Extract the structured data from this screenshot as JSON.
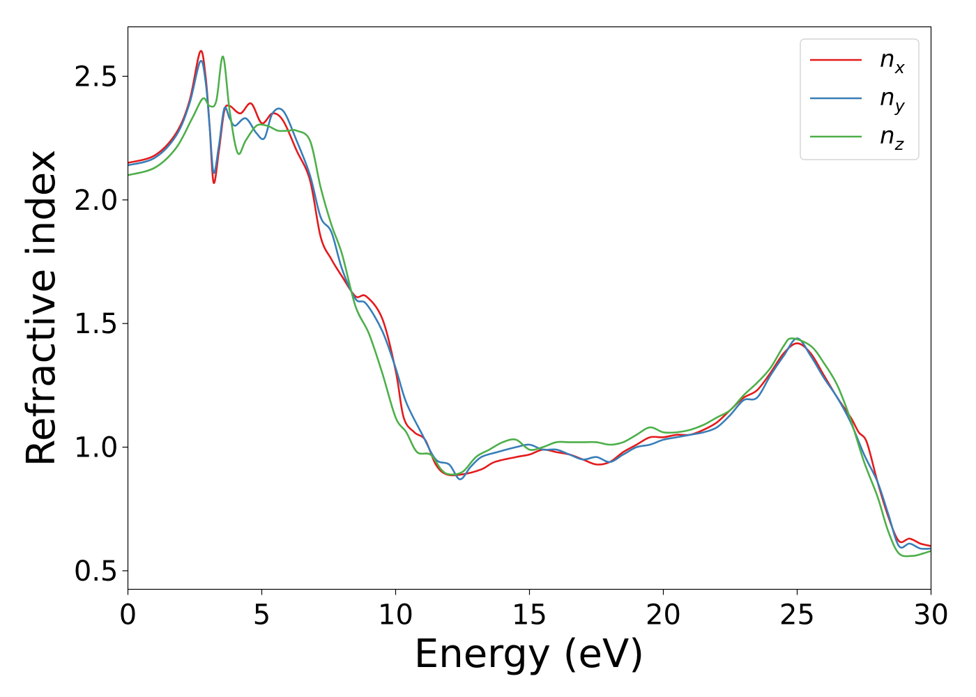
{
  "chart_data": {
    "type": "line",
    "title": "",
    "xlabel": "Energy (eV)",
    "ylabel": "Refractive index",
    "xlim": [
      0,
      30
    ],
    "ylim": [
      0.425,
      2.7
    ],
    "x_ticks": [
      0,
      5,
      10,
      15,
      20,
      25,
      30
    ],
    "y_ticks": [
      0.5,
      1.0,
      1.5,
      2.0,
      2.5
    ],
    "x_tick_labels": [
      "0",
      "5",
      "10",
      "15",
      "20",
      "25",
      "30"
    ],
    "y_tick_labels": [
      "0.5",
      "1.0",
      "1.5",
      "2.0",
      "2.5"
    ],
    "grid": false,
    "legend_position": "top-right",
    "series": [
      {
        "name": "n_x",
        "legend_base": "n",
        "legend_sub": "x",
        "color": "#e41a1c",
        "points": [
          [
            0,
            2.15
          ],
          [
            1,
            2.18
          ],
          [
            1.8,
            2.27
          ],
          [
            2.3,
            2.4
          ],
          [
            2.7,
            2.6
          ],
          [
            2.9,
            2.5
          ],
          [
            3.05,
            2.3
          ],
          [
            3.2,
            2.07
          ],
          [
            3.4,
            2.2
          ],
          [
            3.6,
            2.36
          ],
          [
            3.8,
            2.38
          ],
          [
            4.2,
            2.35
          ],
          [
            4.6,
            2.39
          ],
          [
            5.0,
            2.31
          ],
          [
            5.4,
            2.35
          ],
          [
            5.8,
            2.32
          ],
          [
            6.3,
            2.2
          ],
          [
            6.8,
            2.08
          ],
          [
            7.2,
            1.85
          ],
          [
            7.6,
            1.76
          ],
          [
            8.0,
            1.69
          ],
          [
            8.5,
            1.61
          ],
          [
            8.9,
            1.61
          ],
          [
            9.5,
            1.52
          ],
          [
            10.0,
            1.31
          ],
          [
            10.3,
            1.12
          ],
          [
            10.7,
            1.06
          ],
          [
            11.1,
            1.03
          ],
          [
            11.5,
            0.93
          ],
          [
            11.9,
            0.89
          ],
          [
            12.5,
            0.89
          ],
          [
            13.2,
            0.91
          ],
          [
            13.7,
            0.94
          ],
          [
            14.5,
            0.96
          ],
          [
            15.0,
            0.97
          ],
          [
            15.5,
            0.99
          ],
          [
            16.0,
            0.98
          ],
          [
            16.5,
            0.97
          ],
          [
            17.0,
            0.95
          ],
          [
            17.5,
            0.93
          ],
          [
            18.0,
            0.94
          ],
          [
            18.5,
            0.98
          ],
          [
            19.0,
            1.01
          ],
          [
            19.5,
            1.04
          ],
          [
            20.0,
            1.04
          ],
          [
            20.5,
            1.05
          ],
          [
            21.0,
            1.05
          ],
          [
            21.5,
            1.07
          ],
          [
            22.0,
            1.1
          ],
          [
            22.5,
            1.15
          ],
          [
            23.0,
            1.2
          ],
          [
            23.5,
            1.23
          ],
          [
            24.0,
            1.3
          ],
          [
            24.5,
            1.38
          ],
          [
            25.0,
            1.42
          ],
          [
            25.5,
            1.38
          ],
          [
            26.0,
            1.29
          ],
          [
            26.5,
            1.2
          ],
          [
            27.0,
            1.12
          ],
          [
            27.3,
            1.06
          ],
          [
            27.6,
            1.02
          ],
          [
            28.0,
            0.86
          ],
          [
            28.4,
            0.72
          ],
          [
            28.8,
            0.62
          ],
          [
            29.2,
            0.63
          ],
          [
            29.6,
            0.61
          ],
          [
            30.0,
            0.6
          ]
        ]
      },
      {
        "name": "n_y",
        "legend_base": "n",
        "legend_sub": "y",
        "color": "#377eb8",
        "points": [
          [
            0,
            2.14
          ],
          [
            1,
            2.17
          ],
          [
            1.8,
            2.26
          ],
          [
            2.3,
            2.39
          ],
          [
            2.7,
            2.56
          ],
          [
            2.9,
            2.48
          ],
          [
            3.05,
            2.3
          ],
          [
            3.2,
            2.11
          ],
          [
            3.4,
            2.22
          ],
          [
            3.6,
            2.37
          ],
          [
            3.8,
            2.33
          ],
          [
            4.0,
            2.3
          ],
          [
            4.4,
            2.33
          ],
          [
            4.8,
            2.27
          ],
          [
            5.1,
            2.25
          ],
          [
            5.4,
            2.35
          ],
          [
            5.8,
            2.36
          ],
          [
            6.3,
            2.24
          ],
          [
            6.8,
            2.1
          ],
          [
            7.2,
            1.93
          ],
          [
            7.6,
            1.87
          ],
          [
            8.0,
            1.72
          ],
          [
            8.5,
            1.6
          ],
          [
            8.9,
            1.58
          ],
          [
            9.5,
            1.47
          ],
          [
            10.0,
            1.32
          ],
          [
            10.4,
            1.18
          ],
          [
            11.0,
            1.05
          ],
          [
            11.5,
            0.95
          ],
          [
            12.0,
            0.93
          ],
          [
            12.4,
            0.87
          ],
          [
            12.8,
            0.92
          ],
          [
            13.2,
            0.96
          ],
          [
            13.8,
            0.98
          ],
          [
            14.5,
            1.0
          ],
          [
            15.0,
            1.01
          ],
          [
            15.5,
            0.99
          ],
          [
            16.0,
            0.99
          ],
          [
            16.5,
            0.97
          ],
          [
            17.0,
            0.95
          ],
          [
            17.5,
            0.96
          ],
          [
            18.0,
            0.94
          ],
          [
            18.5,
            0.97
          ],
          [
            19.0,
            1.0
          ],
          [
            19.5,
            1.01
          ],
          [
            20.0,
            1.03
          ],
          [
            20.5,
            1.04
          ],
          [
            21.0,
            1.05
          ],
          [
            21.5,
            1.06
          ],
          [
            22.0,
            1.08
          ],
          [
            22.5,
            1.13
          ],
          [
            23.0,
            1.19
          ],
          [
            23.5,
            1.2
          ],
          [
            24.0,
            1.29
          ],
          [
            24.5,
            1.37
          ],
          [
            25.0,
            1.44
          ],
          [
            25.5,
            1.37
          ],
          [
            26.0,
            1.28
          ],
          [
            26.5,
            1.2
          ],
          [
            27.0,
            1.1
          ],
          [
            27.5,
            0.97
          ],
          [
            28.0,
            0.86
          ],
          [
            28.4,
            0.73
          ],
          [
            28.8,
            0.6
          ],
          [
            29.2,
            0.61
          ],
          [
            29.6,
            0.59
          ],
          [
            30.0,
            0.59
          ]
        ]
      },
      {
        "name": "n_z",
        "legend_base": "n",
        "legend_sub": "z",
        "color": "#4daf4a",
        "points": [
          [
            0,
            2.1
          ],
          [
            1,
            2.13
          ],
          [
            1.8,
            2.21
          ],
          [
            2.4,
            2.33
          ],
          [
            2.8,
            2.41
          ],
          [
            3.05,
            2.38
          ],
          [
            3.3,
            2.4
          ],
          [
            3.55,
            2.58
          ],
          [
            3.8,
            2.36
          ],
          [
            4.1,
            2.19
          ],
          [
            4.4,
            2.24
          ],
          [
            4.8,
            2.3
          ],
          [
            5.2,
            2.3
          ],
          [
            5.6,
            2.28
          ],
          [
            6.0,
            2.28
          ],
          [
            6.3,
            2.28
          ],
          [
            6.8,
            2.24
          ],
          [
            7.2,
            2.05
          ],
          [
            7.6,
            1.9
          ],
          [
            8.0,
            1.78
          ],
          [
            8.5,
            1.57
          ],
          [
            9.0,
            1.46
          ],
          [
            9.5,
            1.3
          ],
          [
            10.0,
            1.12
          ],
          [
            10.4,
            1.06
          ],
          [
            10.8,
            0.98
          ],
          [
            11.3,
            0.97
          ],
          [
            11.7,
            0.91
          ],
          [
            12.0,
            0.89
          ],
          [
            12.5,
            0.9
          ],
          [
            13.0,
            0.96
          ],
          [
            13.5,
            0.99
          ],
          [
            14.0,
            1.02
          ],
          [
            14.5,
            1.03
          ],
          [
            15.0,
            0.99
          ],
          [
            15.5,
            1.0
          ],
          [
            16.0,
            1.02
          ],
          [
            16.5,
            1.02
          ],
          [
            17.0,
            1.02
          ],
          [
            17.5,
            1.02
          ],
          [
            18.0,
            1.01
          ],
          [
            18.5,
            1.02
          ],
          [
            19.0,
            1.05
          ],
          [
            19.5,
            1.08
          ],
          [
            20.0,
            1.06
          ],
          [
            20.5,
            1.06
          ],
          [
            21.0,
            1.07
          ],
          [
            21.5,
            1.09
          ],
          [
            22.0,
            1.12
          ],
          [
            22.5,
            1.15
          ],
          [
            23.0,
            1.21
          ],
          [
            23.5,
            1.26
          ],
          [
            24.0,
            1.32
          ],
          [
            24.5,
            1.41
          ],
          [
            24.8,
            1.44
          ],
          [
            25.5,
            1.41
          ],
          [
            26.0,
            1.34
          ],
          [
            26.5,
            1.25
          ],
          [
            27.0,
            1.11
          ],
          [
            27.5,
            0.94
          ],
          [
            28.0,
            0.8
          ],
          [
            28.4,
            0.66
          ],
          [
            28.8,
            0.57
          ],
          [
            29.3,
            0.56
          ],
          [
            29.7,
            0.57
          ],
          [
            30.0,
            0.58
          ]
        ]
      }
    ]
  }
}
